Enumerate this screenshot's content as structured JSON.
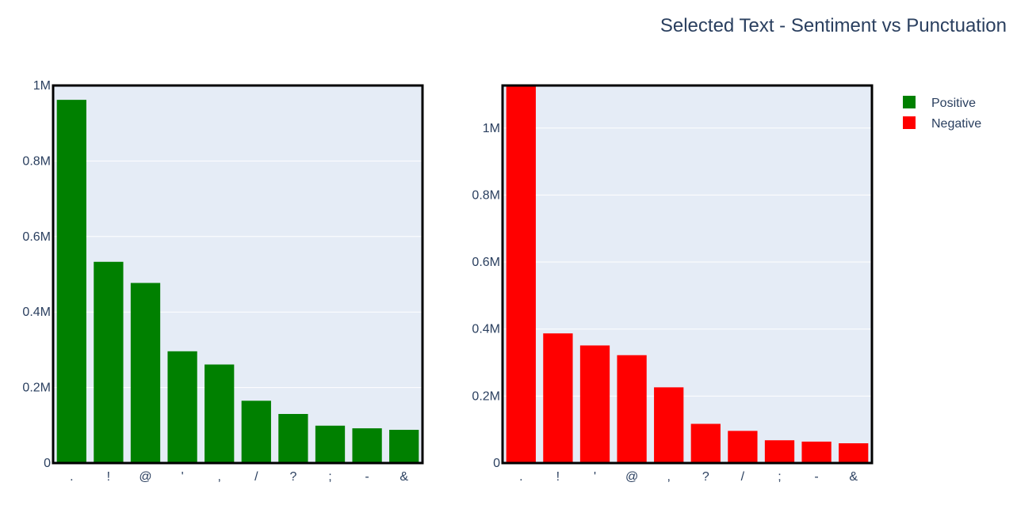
{
  "title": "Selected Text - Sentiment vs Punctuation",
  "legend": [
    {
      "label": "Positive",
      "color": "#008000"
    },
    {
      "label": "Negative",
      "color": "#ff0000"
    }
  ],
  "chart_data": [
    {
      "type": "bar",
      "series": [
        {
          "name": "Positive",
          "color": "#008000"
        }
      ],
      "categories": [
        ".",
        "!",
        "@",
        "'",
        ",",
        "/",
        "?",
        ";",
        "-",
        "&"
      ],
      "values": [
        962000,
        533000,
        477000,
        296000,
        261000,
        165000,
        130000,
        99000,
        92000,
        88000
      ],
      "ylim": [
        0,
        1000000
      ],
      "yticks": [
        0,
        200000,
        400000,
        600000,
        800000,
        1000000
      ],
      "yticklabels": [
        "0",
        "0.2M",
        "0.4M",
        "0.6M",
        "0.8M",
        "1M"
      ],
      "grid": true
    },
    {
      "type": "bar",
      "series": [
        {
          "name": "Negative",
          "color": "#ff0000"
        }
      ],
      "categories": [
        ".",
        "!",
        "'",
        "@",
        ",",
        "?",
        "/",
        ";",
        "-",
        "&"
      ],
      "values": [
        1127000,
        387000,
        351000,
        322000,
        226000,
        117000,
        96000,
        68000,
        64000,
        59000
      ],
      "ylim": [
        0,
        1127000
      ],
      "yticks": [
        0,
        200000,
        400000,
        600000,
        800000,
        1000000
      ],
      "yticklabels": [
        "0",
        "0.2M",
        "0.4M",
        "0.6M",
        "0.8M",
        "1M"
      ],
      "grid": true
    }
  ],
  "colors": {
    "plot_bg": "#e5ecf6",
    "text": "#2a3f5f",
    "grid": "#ffffff"
  }
}
